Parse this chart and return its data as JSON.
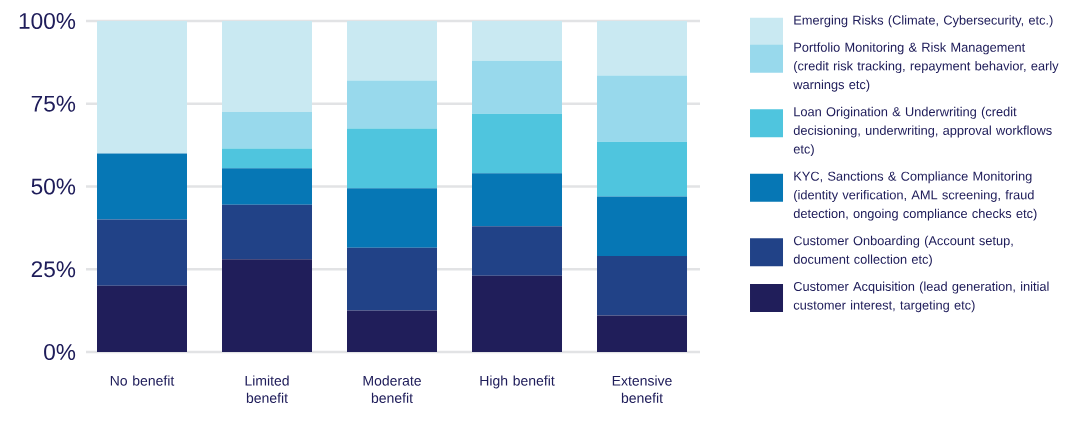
{
  "chart_data": {
    "type": "bar",
    "stacked": true,
    "categories": [
      "No benefit",
      "Limited benefit",
      "Moderate benefit",
      "High benefit",
      "Extensive benefit"
    ],
    "series": [
      {
        "name": "Customer Acquisition (lead generation, initial customer interest, targeting etc)",
        "color": "#201e5a",
        "values": [
          20,
          28,
          12.5,
          23,
          11
        ]
      },
      {
        "name": "Customer Onboarding (Account setup, document collection etc)",
        "color": "#214287",
        "values": [
          20,
          16.5,
          19,
          15,
          18
        ]
      },
      {
        "name": "KYC, Sanctions & Compliance Monitoring (identity verification, AML screening, fraud detection, ongoing compliance checks etc)",
        "color": "#0677b5",
        "values": [
          20,
          11,
          18,
          16,
          18
        ]
      },
      {
        "name": "Loan Origination & Underwriting (credit decisioning, underwriting, approval workflows etc)",
        "color": "#4fc5de",
        "values": [
          0,
          6,
          18,
          18,
          16.5
        ]
      },
      {
        "name": "Portfolio Monitoring & Risk Management (credit risk tracking, repayment behavior, early warnings etc)",
        "color": "#98d9ec",
        "values": [
          0,
          11,
          14.5,
          16,
          20
        ]
      },
      {
        "name": "Emerging Risks (Climate, Cybersecurity, etc.)",
        "color": "#c9e9f2",
        "values": [
          40,
          27.5,
          18,
          12,
          16.5
        ]
      }
    ],
    "ylim": [
      0,
      100
    ],
    "yticks": [
      {
        "value": 0,
        "label": "0%"
      },
      {
        "value": 25,
        "label": "25%"
      },
      {
        "value": 50,
        "label": "50%"
      },
      {
        "value": 75,
        "label": "75%"
      },
      {
        "value": 100,
        "label": "100%"
      }
    ],
    "grid": "y",
    "legend": "right"
  }
}
